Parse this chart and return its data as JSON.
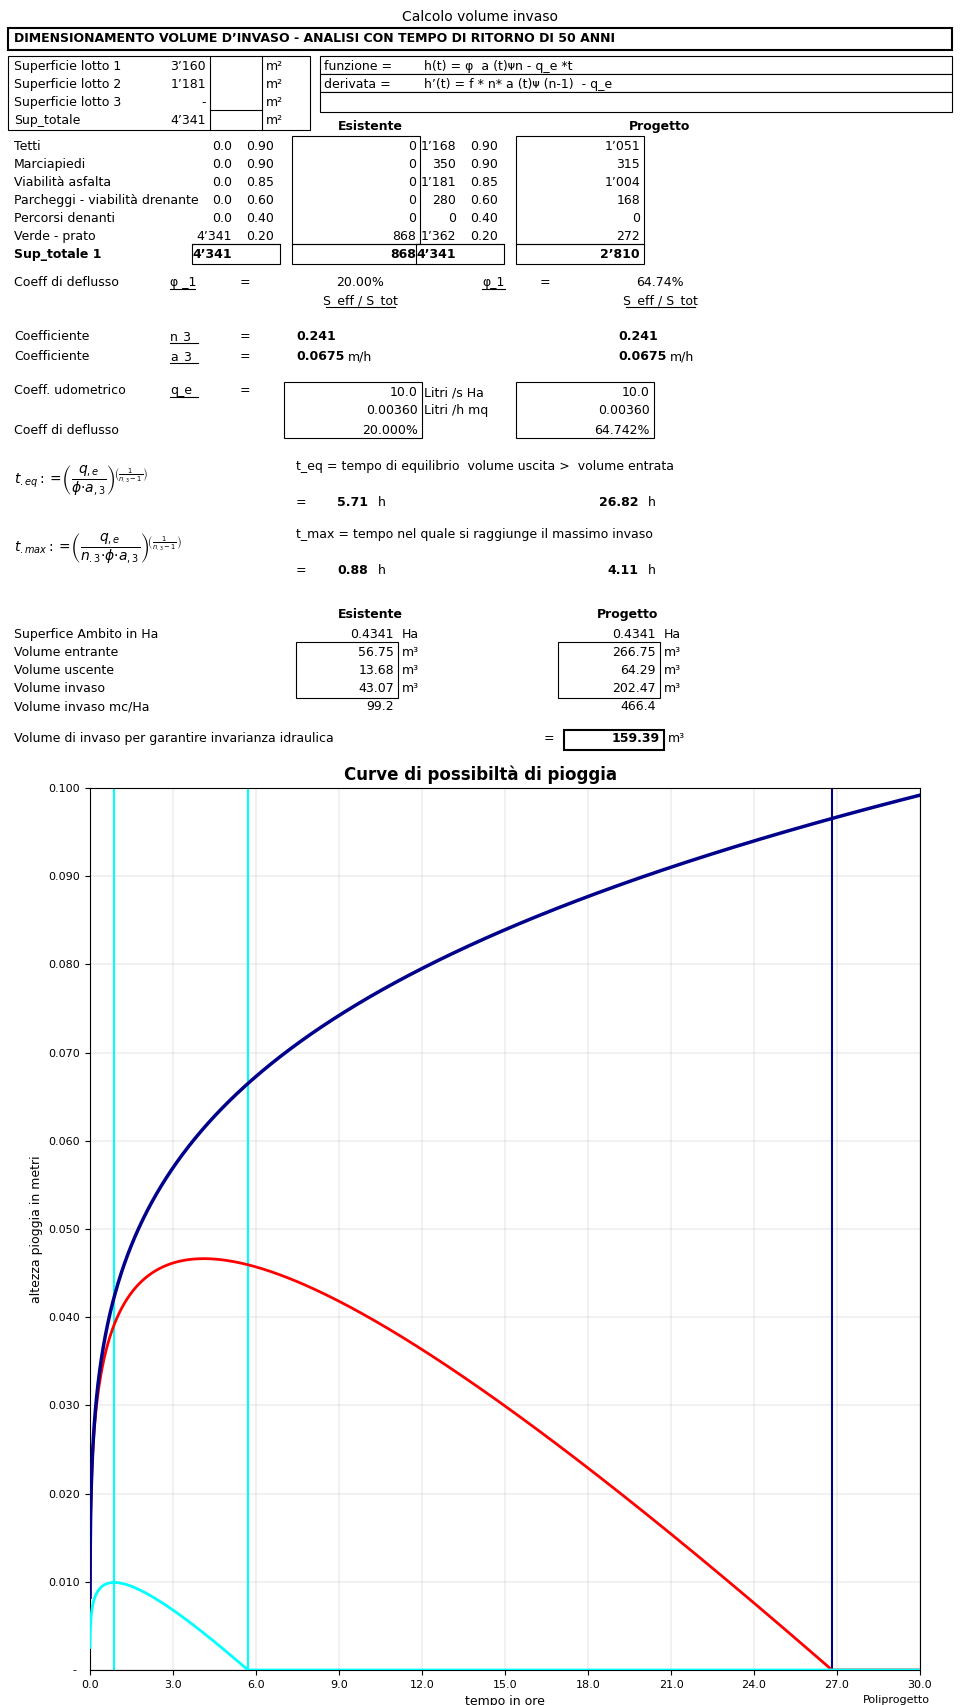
{
  "title_top": "Calcolo volume invaso",
  "header": "DIMENSIONAMENTO VOLUME D’INVASO - ANALISI CON TEMPO DI RITORNO DI 50 ANNI",
  "superficie_rows": [
    [
      "Superficie lotto 1",
      "3’160",
      "m²"
    ],
    [
      "Superficie lotto 2",
      "1’181",
      "m²"
    ],
    [
      "Superficie lotto 3",
      "-",
      "m²"
    ],
    [
      "Sup_totale",
      "4’341",
      "m²"
    ]
  ],
  "funzione_formula": "h(t) = φ  a (t)ᴪn - q_e *t",
  "derivata_formula": "h’(t) = f * n* a (t)ᴪ (n-1)  - q_e",
  "table_rows": [
    [
      "Tetti",
      "0.0",
      "0.90",
      "0",
      "1’168",
      "0.90",
      "1’051"
    ],
    [
      "Marciapiedi",
      "0.0",
      "0.90",
      "0",
      "350",
      "0.90",
      "315"
    ],
    [
      "Viabilità asfalta",
      "0.0",
      "0.85",
      "0",
      "1’181",
      "0.85",
      "1’004"
    ],
    [
      "Parcheggi - viabilità drenante",
      "0.0",
      "0.60",
      "0",
      "280",
      "0.60",
      "168"
    ],
    [
      "Percorsi denanti",
      "0.0",
      "0.40",
      "0",
      "0",
      "0.40",
      "0"
    ],
    [
      "Verde - prato",
      "4’341",
      "0.20",
      "868",
      "1’362",
      "0.20",
      "272"
    ],
    [
      "Sup_totale 1",
      "4’341",
      "",
      "868",
      "4’341",
      "",
      "2’810"
    ]
  ],
  "formula_teq_desc": "t_eq = tempo di equilibrio  volume uscita >  volume entrata",
  "teq_esistente": "5.71",
  "teq_progetto": "26.82",
  "formula_tmax_desc": "t_max = tempo nel quale si raggiunge il massimo invaso",
  "tmax_esistente": "0.88",
  "tmax_progetto": "4.11",
  "results_rows": [
    [
      "Superfice Ambito in Ha",
      "0.4341",
      "Ha",
      "0.4341",
      "Ha"
    ],
    [
      "Volume entrante",
      "56.75",
      "m³",
      "266.75",
      "m³"
    ],
    [
      "Volume uscente",
      "13.68",
      "m³",
      "64.29",
      "m³"
    ],
    [
      "Volume invaso",
      "43.07",
      "m³",
      "202.47",
      "m³"
    ],
    [
      "Volume invaso mc/Ha",
      "99.2",
      "",
      "466.4",
      ""
    ]
  ],
  "volume_invarianza_label": "Volume di invaso per garantire invarianza idraulica",
  "volume_invarianza_value": "159.39",
  "volume_invarianza_unit": "m³",
  "chart_title": "Curve di possibiltà di pioggia",
  "chart_xlabel": "tempo in ore",
  "chart_ylabel": "altezza pioggia in metri",
  "chart_yticks": [
    0.01,
    0.02,
    0.03,
    0.04,
    0.05,
    0.06,
    0.07,
    0.08,
    0.09,
    0.1
  ],
  "chart_xticks": [
    0.0,
    3.0,
    6.0,
    9.0,
    12.0,
    15.0,
    18.0,
    21.0,
    24.0,
    27.0,
    30.0
  ],
  "n_3": 0.241,
  "a_3": 0.0675,
  "q_e": 0.0036,
  "phi_esistente": 0.2,
  "phi_progetto": 0.6474,
  "t_eq_esistente": 5.71,
  "t_eq_progetto": 26.82,
  "t_max_esistente": 0.88,
  "t_max_progetto": 4.11,
  "poliprogetto_label": "Poliprogetto",
  "bg_color": "#ffffff"
}
